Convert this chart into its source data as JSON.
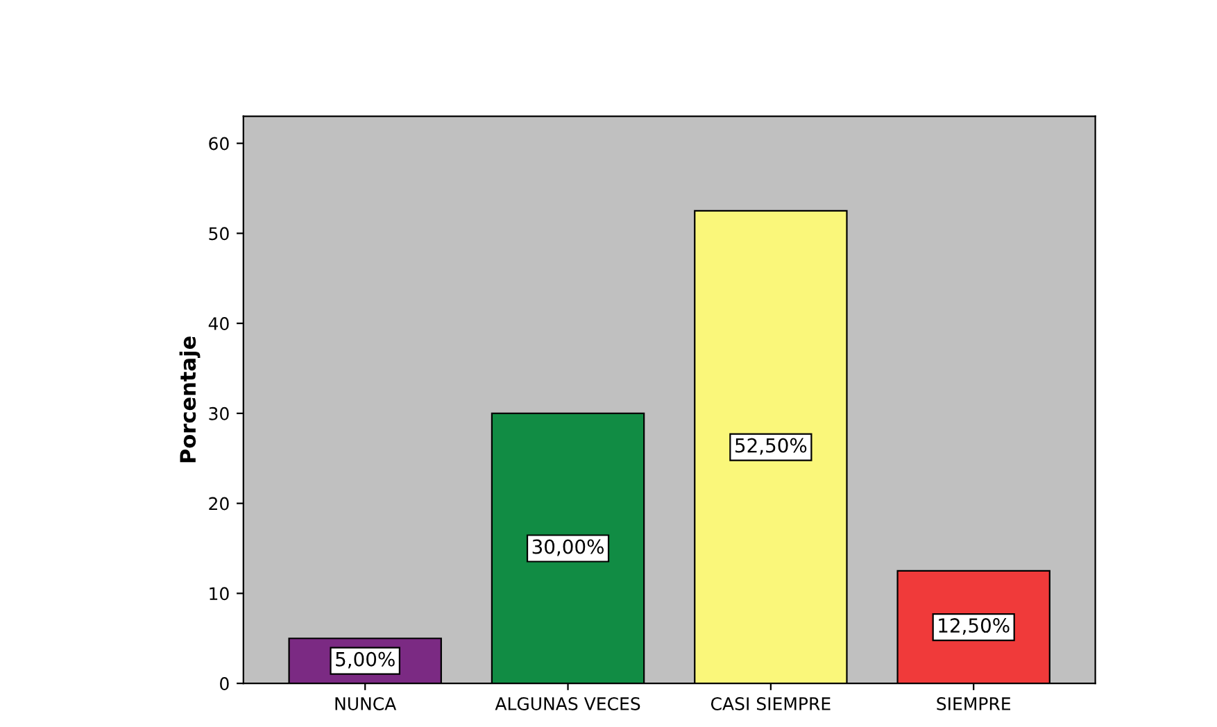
{
  "chart_data": {
    "type": "bar",
    "ylabel": "Porcentaje",
    "categories": [
      "NUNCA",
      "ALGUNAS VECES",
      "CASI SIEMPRE",
      "SIEMPRE"
    ],
    "values": [
      5,
      30,
      52.5,
      12.5
    ],
    "colors": [
      "#7b2a83",
      "#118c44",
      "#faf77a",
      "#f03a3a"
    ],
    "value_labels": [
      "5,00%",
      "30,00%",
      "52,50%",
      "12,50%"
    ],
    "ylim": [
      0,
      63
    ],
    "yticks": [
      0,
      10,
      20,
      30,
      40,
      50,
      60
    ],
    "grid": false,
    "legend": false
  }
}
